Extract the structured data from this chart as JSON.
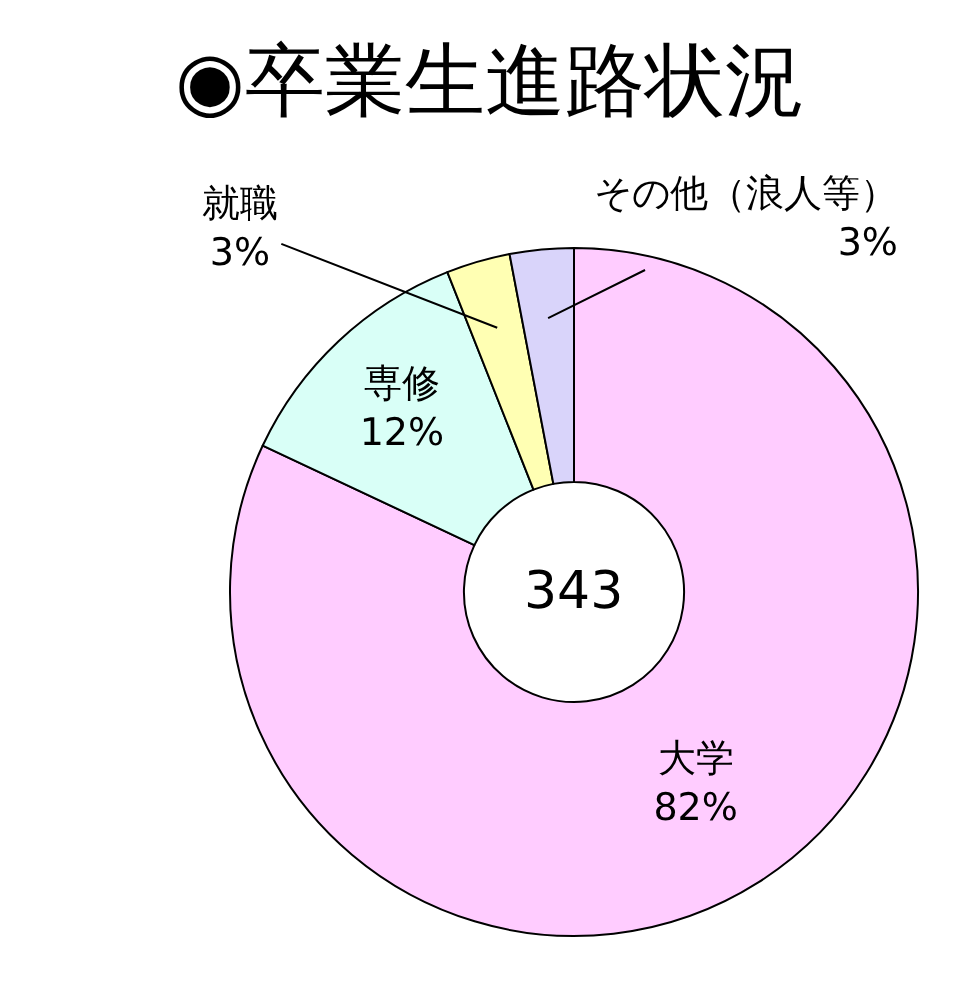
{
  "chart_data": {
    "type": "donut",
    "title": "◉卒業生進路状況",
    "categories": [
      "大学",
      "専修",
      "就職",
      "その他（浪人等）"
    ],
    "values": [
      82,
      12,
      3,
      3
    ],
    "colors": [
      "#ffccff",
      "#d9fff7",
      "#ffffb3",
      "#d9d4fa"
    ],
    "value_labels": [
      "82%",
      "12%",
      "3%",
      "3%"
    ],
    "annotations": [
      "343"
    ],
    "legend": false
  }
}
